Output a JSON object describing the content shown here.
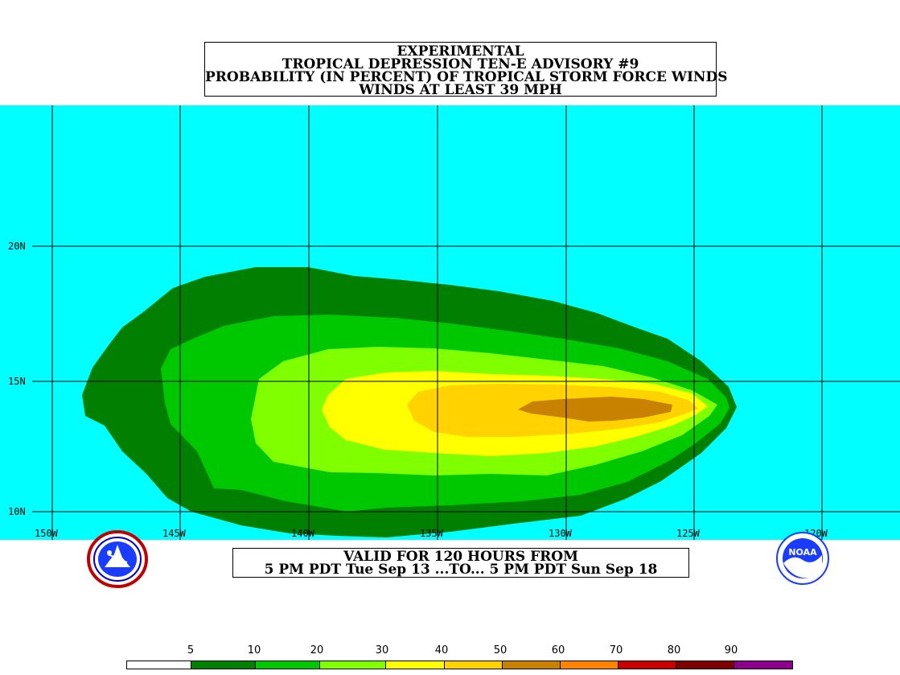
{
  "title": {
    "line1": "EXPERIMENTAL",
    "line2": "TROPICAL DEPRESSION TEN-E ADVISORY #9",
    "line3": "PROBABILITY (IN PERCENT) OF TROPICAL STORM FORCE WINDS",
    "line4": "WINDS AT LEAST 39 MPH"
  },
  "map": {
    "ocean_color": "#00ffff",
    "lon_labels": [
      "150W",
      "145W",
      "140W",
      "135W",
      "130W",
      "125W",
      "120W"
    ],
    "lat_labels": [
      "20N",
      "15N",
      "10N"
    ]
  },
  "valid": {
    "line1": "VALID FOR 120 HOURS FROM",
    "line2": "5 PM PDT Tue Sep 13 ...TO... 5 PM PDT Sun Sep 18"
  },
  "logos": {
    "left": "nws-logo",
    "right": "noaa-logo",
    "noaa_text": "NOAA"
  },
  "legend": {
    "labels": [
      "5",
      "10",
      "20",
      "30",
      "40",
      "50",
      "60",
      "70",
      "80",
      "90"
    ],
    "colors": [
      "#ffffff",
      "#007f00",
      "#00c800",
      "#7fff00",
      "#ffff00",
      "#ffd200",
      "#c88200",
      "#ff8200",
      "#c80000",
      "#7f0000",
      "#8c008c"
    ]
  },
  "contour_colors": {
    "p5": "#007f00",
    "p10": "#00c800",
    "p20": "#7fff00",
    "p30": "#ffff00",
    "p40": "#ffd200",
    "p50": "#c88200"
  }
}
